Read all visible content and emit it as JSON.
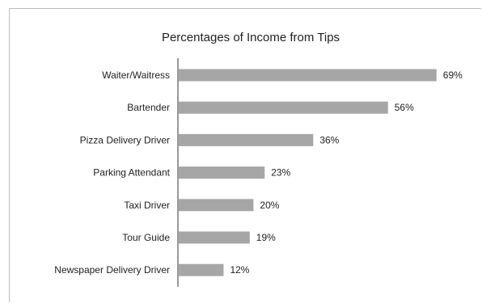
{
  "chart_data": {
    "type": "bar",
    "orientation": "horizontal",
    "title": "Percentages of Income from Tips",
    "categories": [
      "Waiter/Waitress",
      "Bartender",
      "Pizza Delivery Driver",
      "Parking Attendant",
      "Taxi Driver",
      "Tour Guide",
      "Newspaper Delivery Driver"
    ],
    "values": [
      69,
      56,
      36,
      23,
      20,
      19,
      12
    ],
    "value_labels": [
      "69%",
      "56%",
      "36%",
      "23%",
      "20%",
      "19%",
      "12%"
    ],
    "xlabel": "",
    "ylabel": "",
    "xlim": [
      0,
      100
    ],
    "grid": false,
    "bar_color": "#a6a6a6"
  }
}
